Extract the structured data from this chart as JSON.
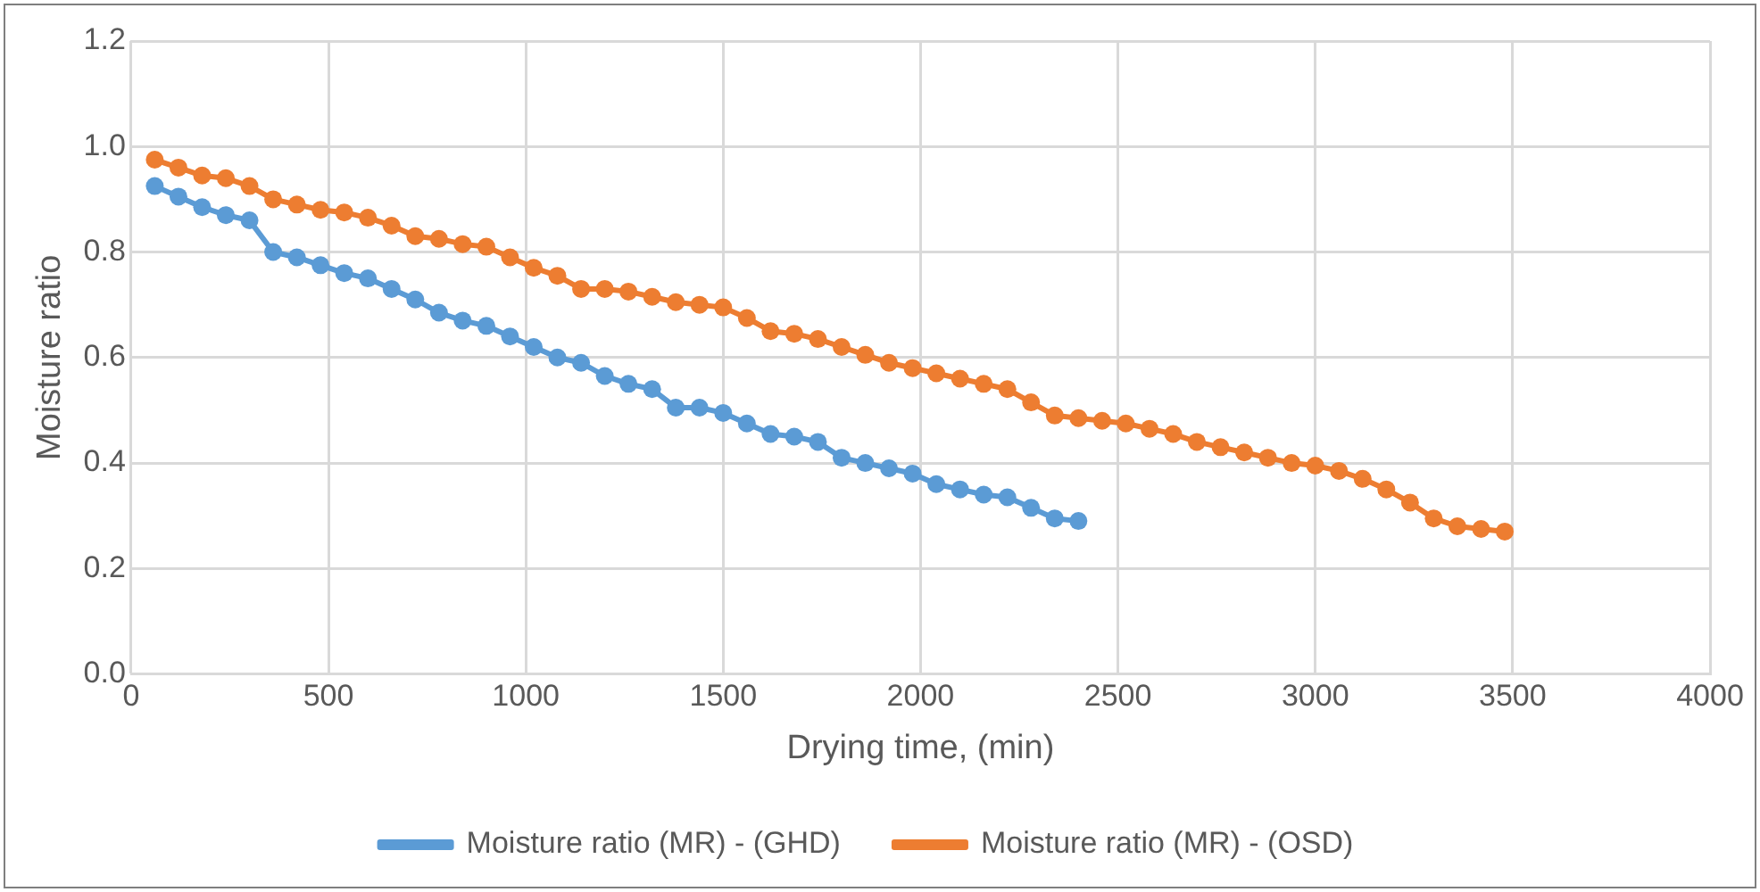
{
  "chart_data": {
    "type": "line",
    "xlabel": "Drying time, (min)",
    "ylabel": "Moisture ratio",
    "xlim": [
      0,
      4000
    ],
    "xticks": [
      0,
      500,
      1000,
      1500,
      2000,
      2500,
      3000,
      3500,
      4000
    ],
    "ylim": [
      0,
      1.2
    ],
    "yticks": [
      {
        "value": 0,
        "label": "0.0"
      },
      {
        "value": 0.2,
        "label": "0.2"
      },
      {
        "value": 0.4,
        "label": "0.4"
      },
      {
        "value": 0.6,
        "label": "0.6"
      },
      {
        "value": 0.8,
        "label": "0.8"
      },
      {
        "value": 1,
        "label": "1.0"
      },
      {
        "value": 1.2,
        "label": "1.2"
      }
    ],
    "grid": true,
    "legend": "bottom",
    "marker": "circle",
    "line_style": "solid",
    "series": [
      {
        "name": "Moisture ratio (MR) - (GHD)",
        "color": "#5b9bd5",
        "x": [
          60,
          120,
          180,
          240,
          300,
          360,
          420,
          480,
          540,
          600,
          660,
          720,
          780,
          840,
          900,
          960,
          1020,
          1080,
          1140,
          1200,
          1260,
          1320,
          1380,
          1440,
          1500,
          1560,
          1620,
          1680,
          1740,
          1800,
          1860,
          1920,
          1980,
          2040,
          2100,
          2160,
          2220,
          2280,
          2340,
          2400
        ],
        "values": [
          0.925,
          0.905,
          0.885,
          0.87,
          0.86,
          0.8,
          0.79,
          0.775,
          0.76,
          0.75,
          0.73,
          0.71,
          0.685,
          0.67,
          0.66,
          0.64,
          0.62,
          0.6,
          0.59,
          0.565,
          0.55,
          0.54,
          0.505,
          0.505,
          0.495,
          0.475,
          0.455,
          0.45,
          0.44,
          0.41,
          0.4,
          0.39,
          0.38,
          0.36,
          0.35,
          0.34,
          0.335,
          0.315,
          0.295,
          0.29
        ]
      },
      {
        "name": "Moisture ratio (MR) - (OSD)",
        "color": "#ed7d31",
        "x": [
          60,
          120,
          180,
          240,
          300,
          360,
          420,
          480,
          540,
          600,
          660,
          720,
          780,
          840,
          900,
          960,
          1020,
          1080,
          1140,
          1200,
          1260,
          1320,
          1380,
          1440,
          1500,
          1560,
          1620,
          1680,
          1740,
          1800,
          1860,
          1920,
          1980,
          2040,
          2100,
          2160,
          2220,
          2280,
          2340,
          2400,
          2460,
          2520,
          2580,
          2640,
          2700,
          2760,
          2820,
          2880,
          2940,
          3000,
          3060,
          3120,
          3180,
          3240,
          3300,
          3360,
          3420,
          3480
        ],
        "values": [
          0.975,
          0.96,
          0.945,
          0.94,
          0.925,
          0.9,
          0.89,
          0.88,
          0.875,
          0.865,
          0.85,
          0.83,
          0.825,
          0.815,
          0.81,
          0.79,
          0.77,
          0.755,
          0.73,
          0.73,
          0.725,
          0.715,
          0.705,
          0.7,
          0.695,
          0.675,
          0.65,
          0.645,
          0.635,
          0.62,
          0.605,
          0.59,
          0.58,
          0.57,
          0.56,
          0.55,
          0.54,
          0.515,
          0.49,
          0.485,
          0.48,
          0.475,
          0.465,
          0.455,
          0.44,
          0.43,
          0.42,
          0.41,
          0.4,
          0.395,
          0.385,
          0.37,
          0.35,
          0.325,
          0.295,
          0.28,
          0.275,
          0.27
        ]
      }
    ]
  }
}
